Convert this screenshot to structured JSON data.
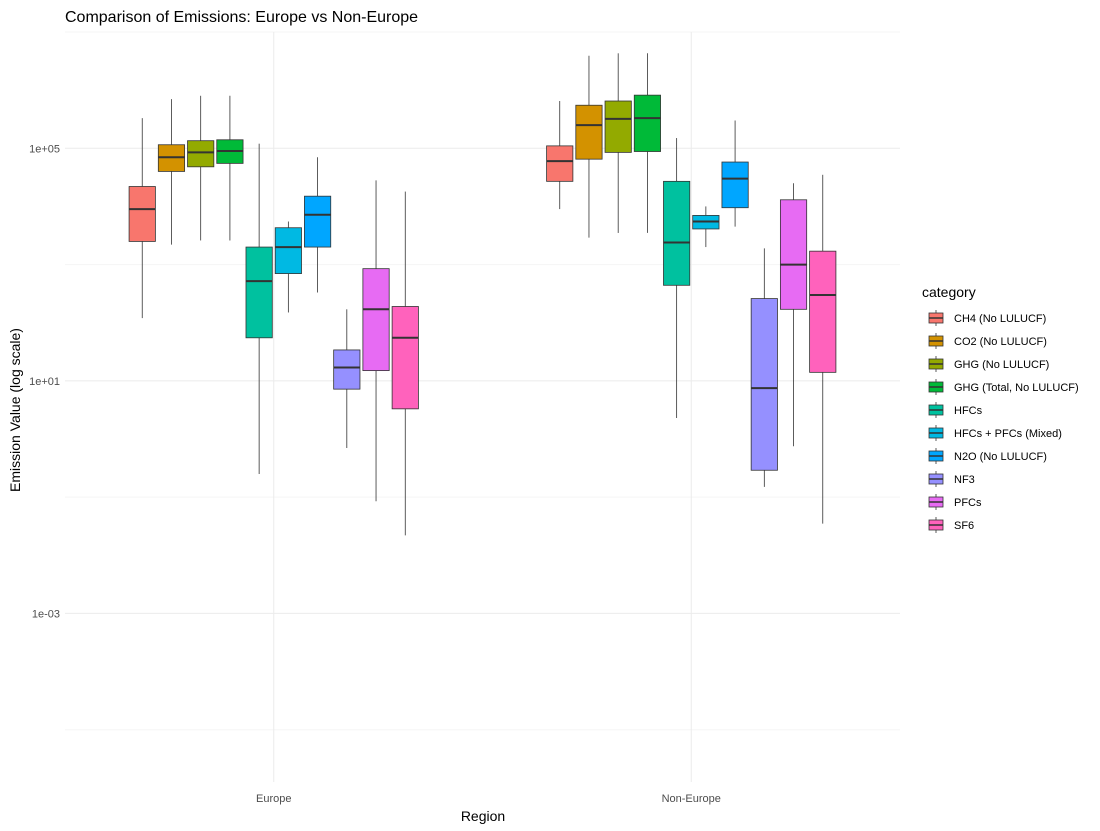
{
  "chart_data": {
    "type": "boxplot",
    "title": "Comparison of Emissions: Europe vs Non-Europe",
    "xlabel": "Region",
    "ylabel": "Emission Value (log scale)",
    "y_scale": "log10",
    "ylim": [
      1.26e-06,
      10000000
    ],
    "y_ticks": [
      {
        "value": 0.001,
        "label": "1e-03"
      },
      {
        "value": 10,
        "label": "1e+01"
      },
      {
        "value": 100000,
        "label": "1e+05"
      }
    ],
    "y_minor_ticks": [
      1e-05,
      0.1,
      1000,
      10000000
    ],
    "grid": true,
    "legend_position": "right",
    "legend_title": "category",
    "categories": [
      "Europe",
      "Non-Europe"
    ],
    "series": [
      {
        "name": "CH4 (No LULUCF)",
        "color": "#F8766D",
        "stats": [
          {
            "whisker_low": 120,
            "q1": 2500,
            "median": 9000,
            "q3": 22000,
            "whisker_high": 330000
          },
          {
            "whisker_low": 9000,
            "q1": 27000,
            "median": 60000,
            "q3": 110000,
            "whisker_high": 650000
          }
        ]
      },
      {
        "name": "CO2 (No LULUCF)",
        "color": "#D39200",
        "stats": [
          {
            "whisker_low": 2200,
            "q1": 40000,
            "median": 70000,
            "q3": 115000,
            "whisker_high": 700000
          },
          {
            "whisker_low": 2900,
            "q1": 65000,
            "median": 250000,
            "q3": 550000,
            "whisker_high": 3900000
          }
        ]
      },
      {
        "name": "GHG (No LULUCF)",
        "color": "#93AA00",
        "stats": [
          {
            "whisker_low": 2600,
            "q1": 48000,
            "median": 85000,
            "q3": 135000,
            "whisker_high": 800000
          },
          {
            "whisker_low": 3500,
            "q1": 85000,
            "median": 320000,
            "q3": 650000,
            "whisker_high": 4300000
          }
        ]
      },
      {
        "name": "GHG (Total, No LULUCF)",
        "color": "#00BA38",
        "stats": [
          {
            "whisker_low": 2600,
            "q1": 55000,
            "median": 90000,
            "q3": 140000,
            "whisker_high": 800000
          },
          {
            "whisker_low": 3500,
            "q1": 88000,
            "median": 330000,
            "q3": 820000,
            "whisker_high": 4300000
          }
        ]
      },
      {
        "name": "HFCs",
        "color": "#00C19F",
        "stats": [
          {
            "whisker_low": 0.25,
            "q1": 55,
            "median": 520,
            "q3": 2000,
            "whisker_high": 120000
          },
          {
            "whisker_low": 2.3,
            "q1": 440,
            "median": 2400,
            "q3": 27000,
            "whisker_high": 150000
          }
        ]
      },
      {
        "name": "HFCs + PFCs (Mixed)",
        "color": "#00B9E3",
        "stats": [
          {
            "whisker_low": 150,
            "q1": 700,
            "median": 2000,
            "q3": 4300,
            "whisker_high": 5500
          },
          {
            "whisker_low": 2000,
            "q1": 4100,
            "median": 5500,
            "q3": 7000,
            "whisker_high": 10000
          }
        ]
      },
      {
        "name": "N2O (No LULUCF)",
        "color": "#00A6FF",
        "stats": [
          {
            "whisker_low": 330,
            "q1": 2000,
            "median": 7200,
            "q3": 15000,
            "whisker_high": 70000
          },
          {
            "whisker_low": 4500,
            "q1": 9500,
            "median": 30000,
            "q3": 58000,
            "whisker_high": 300000
          }
        ]
      },
      {
        "name": "NF3",
        "color": "#9590FF",
        "stats": [
          {
            "whisker_low": 0.7,
            "q1": 7.2,
            "median": 17,
            "q3": 34,
            "whisker_high": 170
          },
          {
            "whisker_low": 0.15,
            "q1": 0.29,
            "median": 7.5,
            "q3": 260,
            "whisker_high": 1900
          }
        ]
      },
      {
        "name": "PFCs",
        "color": "#E76BF3",
        "stats": [
          {
            "whisker_low": 0.085,
            "q1": 15,
            "median": 170,
            "q3": 850,
            "whisker_high": 28000
          },
          {
            "whisker_low": 0.75,
            "q1": 170,
            "median": 1000,
            "q3": 13000,
            "whisker_high": 25000
          }
        ]
      },
      {
        "name": "SF6",
        "color": "#FF62BC",
        "stats": [
          {
            "whisker_low": 0.022,
            "q1": 3.3,
            "median": 55,
            "q3": 190,
            "whisker_high": 18000
          },
          {
            "whisker_low": 0.035,
            "q1": 14,
            "median": 300,
            "q3": 1700,
            "whisker_high": 35000
          }
        ]
      }
    ]
  }
}
